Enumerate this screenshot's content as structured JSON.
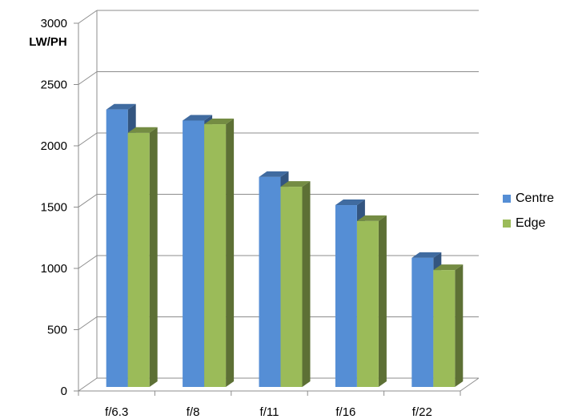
{
  "chart_data": {
    "type": "bar",
    "ylabel": "LW/PH",
    "ylim": [
      0,
      3000
    ],
    "yticks": [
      0,
      500,
      1000,
      1500,
      2000,
      2500,
      3000
    ],
    "categories": [
      "f/6.3",
      "f/8",
      "f/11",
      "f/16",
      "f/22"
    ],
    "series": [
      {
        "name": "Centre",
        "values": [
          2270,
          2180,
          1720,
          1490,
          1060
        ],
        "color": "#558ED5"
      },
      {
        "name": "Edge",
        "values": [
          2080,
          2150,
          1640,
          1360,
          960
        ],
        "color": "#9BBB59"
      }
    ],
    "grid": true,
    "legend_position": "right",
    "style": "3d-clustered-column"
  }
}
